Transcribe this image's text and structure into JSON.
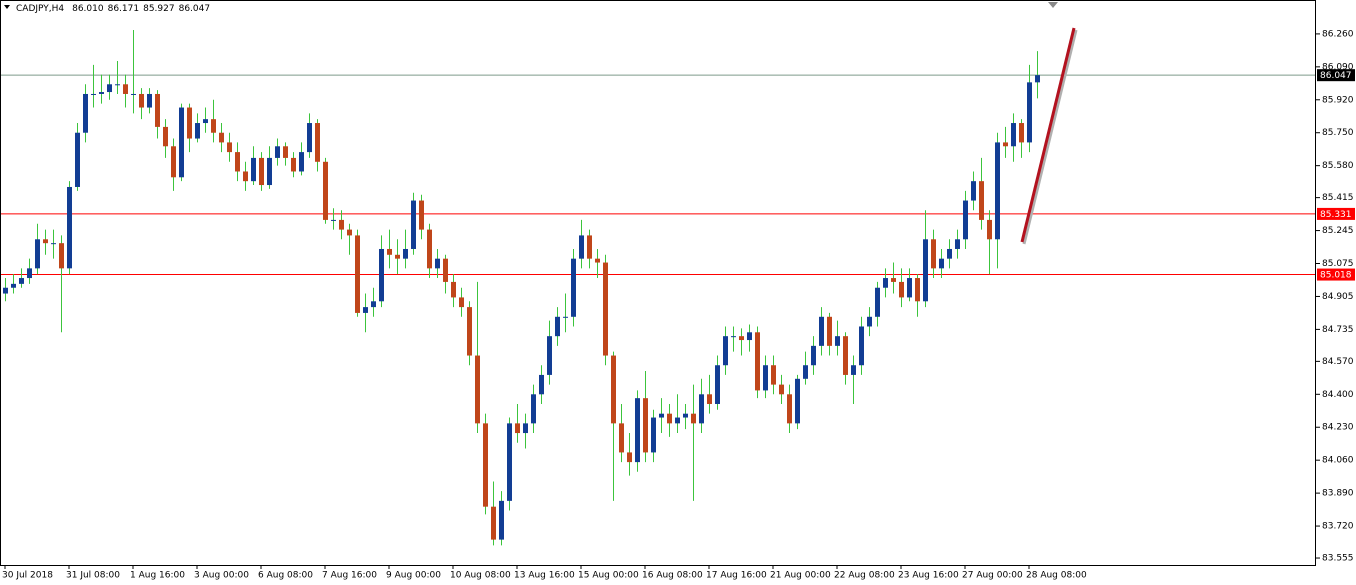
{
  "chart_data": {
    "type": "candlestick",
    "symbol": "CADJPY,H4",
    "header_labels": [
      "86.010",
      "86.171",
      "85.927",
      "86.047"
    ],
    "bull_color": "#123d94",
    "bear_color": "#c0461a",
    "wick_color": "#3cc43c",
    "ylim": [
      83.519,
      86.435
    ],
    "yticks": [
      {
        "value": 86.26,
        "label": "86.260"
      },
      {
        "value": 86.09,
        "label": "86.090"
      },
      {
        "value": 85.92,
        "label": "85.920"
      },
      {
        "value": 85.75,
        "label": "85.750"
      },
      {
        "value": 85.58,
        "label": "85.580"
      },
      85.415,
      85.245,
      85.075,
      84.905,
      84.735,
      {
        "value": 84.57,
        "label": "84.570"
      },
      {
        "value": 84.4,
        "label": "84.400"
      },
      {
        "value": 84.23,
        "label": "84.230"
      },
      {
        "value": 84.06,
        "label": "84.060"
      },
      {
        "value": 83.89,
        "label": "83.890"
      },
      {
        "value": 83.72,
        "label": "83.720"
      },
      83.555
    ],
    "hlines": [
      {
        "value": 86.047,
        "color": "#7d9a8a"
      },
      {
        "value": 85.331,
        "color": "#ff0000"
      },
      {
        "value": 85.018,
        "color": "#ff0000"
      }
    ],
    "categories": [
      "30 Jul 2018",
      null,
      null,
      null,
      null,
      null,
      null,
      null,
      "31 Jul 08:00",
      null,
      null,
      null,
      null,
      null,
      null,
      null,
      "1 Aug 16:00",
      null,
      null,
      null,
      null,
      null,
      null,
      null,
      "3 Aug 00:00",
      null,
      null,
      null,
      null,
      null,
      null,
      null,
      "6 Aug 08:00",
      null,
      null,
      null,
      null,
      null,
      null,
      null,
      "7 Aug 16:00",
      null,
      null,
      null,
      null,
      null,
      null,
      null,
      "9 Aug 00:00",
      null,
      null,
      null,
      null,
      null,
      null,
      null,
      "10 Aug 08:00",
      null,
      null,
      null,
      null,
      null,
      null,
      null,
      "13 Aug 16:00",
      null,
      null,
      null,
      null,
      null,
      null,
      null,
      "15 Aug 00:00",
      null,
      null,
      null,
      null,
      null,
      null,
      null,
      "16 Aug 08:00",
      null,
      null,
      null,
      null,
      null,
      null,
      null,
      "17 Aug 16:00",
      null,
      null,
      null,
      null,
      null,
      null,
      null,
      "21 Aug 00:00",
      null,
      null,
      null,
      null,
      null,
      null,
      null,
      "22 Aug 08:00",
      null,
      null,
      null,
      null,
      null,
      null,
      null,
      "23 Aug 16:00",
      null,
      null,
      null,
      null,
      null,
      null,
      null,
      "27 Aug 00:00",
      null,
      null,
      null,
      null,
      null,
      null,
      null,
      "28 Aug 08:00",
      null
    ],
    "ohlc": [
      [
        84.92,
        85.0,
        84.88,
        84.95
      ],
      [
        84.95,
        85.02,
        84.92,
        84.97
      ],
      [
        84.97,
        85.05,
        84.95,
        85.0
      ],
      [
        85.0,
        85.1,
        84.97,
        85.05
      ],
      [
        85.05,
        85.28,
        85.02,
        85.2
      ],
      [
        85.2,
        85.25,
        85.12,
        85.18
      ],
      [
        85.18,
        85.25,
        85.1,
        85.18
      ],
      [
        85.18,
        85.22,
        84.72,
        85.05
      ],
      [
        85.05,
        85.5,
        85.02,
        85.47
      ],
      [
        85.47,
        85.8,
        85.45,
        85.75
      ],
      [
        85.75,
        86.0,
        85.7,
        85.95
      ],
      [
        85.95,
        86.1,
        85.88,
        85.95
      ],
      [
        85.95,
        86.05,
        85.9,
        85.96
      ],
      [
        85.96,
        86.05,
        85.92,
        86.0
      ],
      [
        86.0,
        86.12,
        85.95,
        86.0
      ],
      [
        86.0,
        86.05,
        85.88,
        85.95
      ],
      [
        85.95,
        86.28,
        85.85,
        85.95
      ],
      [
        85.95,
        85.98,
        85.82,
        85.88
      ],
      [
        85.88,
        85.98,
        85.85,
        85.95
      ],
      [
        85.95,
        85.97,
        85.72,
        85.78
      ],
      [
        85.78,
        85.82,
        85.62,
        85.68
      ],
      [
        85.68,
        85.72,
        85.45,
        85.52
      ],
      [
        85.52,
        85.9,
        85.5,
        85.88
      ],
      [
        85.88,
        85.9,
        85.65,
        85.72
      ],
      [
        85.72,
        85.85,
        85.7,
        85.8
      ],
      [
        85.8,
        85.88,
        85.75,
        85.82
      ],
      [
        85.82,
        85.92,
        85.7,
        85.75
      ],
      [
        85.75,
        85.8,
        85.65,
        85.7
      ],
      [
        85.7,
        85.75,
        85.6,
        85.65
      ],
      [
        85.65,
        85.7,
        85.5,
        85.55
      ],
      [
        85.55,
        85.6,
        85.45,
        85.5
      ],
      [
        85.5,
        85.68,
        85.48,
        85.62
      ],
      [
        85.62,
        85.65,
        85.45,
        85.48
      ],
      [
        85.48,
        85.68,
        85.46,
        85.62
      ],
      [
        85.62,
        85.72,
        85.58,
        85.68
      ],
      [
        85.68,
        85.7,
        85.58,
        85.62
      ],
      [
        85.62,
        85.65,
        85.52,
        85.55
      ],
      [
        85.55,
        85.7,
        85.53,
        85.65
      ],
      [
        85.65,
        85.85,
        85.62,
        85.8
      ],
      [
        85.8,
        85.82,
        85.55,
        85.6
      ],
      [
        85.6,
        85.62,
        85.28,
        85.3
      ],
      [
        85.3,
        85.36,
        85.25,
        85.3
      ],
      [
        85.3,
        85.35,
        85.2,
        85.25
      ],
      [
        85.25,
        85.28,
        85.12,
        85.22
      ],
      [
        85.22,
        85.25,
        84.8,
        84.82
      ],
      [
        84.82,
        84.92,
        84.72,
        84.85
      ],
      [
        84.85,
        84.95,
        84.8,
        84.88
      ],
      [
        84.88,
        85.22,
        84.85,
        85.15
      ],
      [
        85.15,
        85.25,
        85.05,
        85.12
      ],
      [
        85.12,
        85.2,
        85.02,
        85.1
      ],
      [
        85.1,
        85.25,
        85.05,
        85.15
      ],
      [
        85.15,
        85.44,
        85.12,
        85.4
      ],
      [
        85.4,
        85.43,
        85.2,
        85.25
      ],
      [
        85.25,
        85.28,
        85.0,
        85.05
      ],
      [
        85.05,
        85.15,
        85.0,
        85.1
      ],
      [
        85.1,
        85.12,
        84.92,
        84.98
      ],
      [
        84.98,
        85.02,
        84.85,
        84.9
      ],
      [
        84.9,
        84.95,
        84.8,
        84.85
      ],
      [
        84.85,
        84.88,
        84.55,
        84.6
      ],
      [
        84.6,
        84.98,
        84.2,
        84.25
      ],
      [
        84.25,
        84.3,
        83.78,
        83.82
      ],
      [
        83.82,
        83.95,
        83.62,
        83.65
      ],
      [
        83.65,
        83.9,
        83.62,
        83.85
      ],
      [
        83.85,
        84.28,
        83.8,
        84.25
      ],
      [
        84.25,
        84.35,
        84.15,
        84.2
      ],
      [
        84.2,
        84.3,
        84.12,
        84.25
      ],
      [
        84.25,
        84.45,
        84.2,
        84.4
      ],
      [
        84.4,
        84.55,
        84.35,
        84.5
      ],
      [
        84.5,
        84.78,
        84.45,
        84.7
      ],
      [
        84.7,
        84.85,
        84.65,
        84.8
      ],
      [
        84.8,
        84.92,
        84.72,
        84.8
      ],
      [
        84.8,
        85.15,
        84.75,
        85.1
      ],
      [
        85.1,
        85.3,
        85.05,
        85.22
      ],
      [
        85.22,
        85.25,
        85.05,
        85.1
      ],
      [
        85.1,
        85.15,
        85.0,
        85.08
      ],
      [
        85.08,
        85.12,
        84.55,
        84.6
      ],
      [
        84.6,
        84.62,
        83.85,
        84.25
      ],
      [
        84.25,
        84.35,
        84.05,
        84.1
      ],
      [
        84.1,
        84.2,
        83.98,
        84.05
      ],
      [
        84.05,
        84.42,
        84.0,
        84.38
      ],
      [
        84.38,
        84.52,
        84.05,
        84.1
      ],
      [
        84.1,
        84.32,
        84.05,
        84.28
      ],
      [
        84.28,
        84.38,
        84.2,
        84.3
      ],
      [
        84.3,
        84.35,
        84.18,
        84.25
      ],
      [
        84.25,
        84.4,
        84.2,
        84.28
      ],
      [
        84.28,
        84.35,
        84.22,
        84.3
      ],
      [
        84.3,
        84.45,
        83.85,
        84.25
      ],
      [
        84.25,
        84.48,
        84.2,
        84.4
      ],
      [
        84.4,
        84.5,
        84.3,
        84.35
      ],
      [
        84.35,
        84.6,
        84.32,
        84.55
      ],
      [
        84.55,
        84.75,
        84.5,
        84.7
      ],
      [
        84.7,
        84.75,
        84.62,
        84.7
      ],
      [
        84.7,
        84.74,
        84.6,
        84.68
      ],
      [
        84.68,
        84.76,
        84.62,
        84.72
      ],
      [
        84.72,
        84.75,
        84.38,
        84.42
      ],
      [
        84.42,
        84.6,
        84.38,
        84.55
      ],
      [
        84.55,
        84.6,
        84.4,
        84.45
      ],
      [
        84.45,
        84.5,
        84.35,
        84.4
      ],
      [
        84.4,
        84.45,
        84.2,
        84.25
      ],
      [
        84.25,
        84.5,
        84.22,
        84.48
      ],
      [
        84.48,
        84.62,
        84.45,
        84.55
      ],
      [
        84.55,
        84.7,
        84.5,
        84.65
      ],
      [
        84.65,
        84.85,
        84.6,
        84.8
      ],
      [
        84.8,
        84.82,
        84.6,
        84.65
      ],
      [
        84.65,
        84.78,
        84.6,
        84.7
      ],
      [
        84.7,
        84.72,
        84.45,
        84.5
      ],
      [
        84.5,
        84.6,
        84.35,
        84.55
      ],
      [
        84.55,
        84.8,
        84.5,
        84.75
      ],
      [
        84.75,
        84.85,
        84.7,
        84.8
      ],
      [
        84.8,
        84.98,
        84.75,
        84.95
      ],
      [
        84.95,
        85.05,
        84.9,
        85.0
      ],
      [
        85.0,
        85.08,
        84.92,
        84.98
      ],
      [
        84.98,
        85.05,
        84.85,
        84.9
      ],
      [
        84.9,
        85.05,
        84.88,
        85.0
      ],
      [
        85.0,
        85.02,
        84.8,
        84.88
      ],
      [
        84.88,
        85.35,
        84.85,
        85.2
      ],
      [
        85.2,
        85.25,
        85.0,
        85.05
      ],
      [
        85.05,
        85.15,
        85.0,
        85.1
      ],
      [
        85.1,
        85.2,
        85.05,
        85.15
      ],
      [
        85.15,
        85.25,
        85.1,
        85.2
      ],
      [
        85.2,
        85.45,
        85.15,
        85.4
      ],
      [
        85.4,
        85.55,
        85.35,
        85.5
      ],
      [
        85.5,
        85.62,
        85.25,
        85.3
      ],
      [
        85.3,
        85.35,
        85.02,
        85.2
      ],
      [
        85.2,
        85.75,
        85.05,
        85.7
      ],
      [
        85.7,
        85.78,
        85.62,
        85.68
      ],
      [
        85.68,
        85.85,
        85.6,
        85.8
      ],
      [
        85.8,
        85.82,
        85.62,
        85.7
      ],
      [
        85.7,
        86.1,
        85.65,
        86.01
      ],
      [
        86.01,
        86.171,
        85.927,
        86.047
      ]
    ]
  }
}
